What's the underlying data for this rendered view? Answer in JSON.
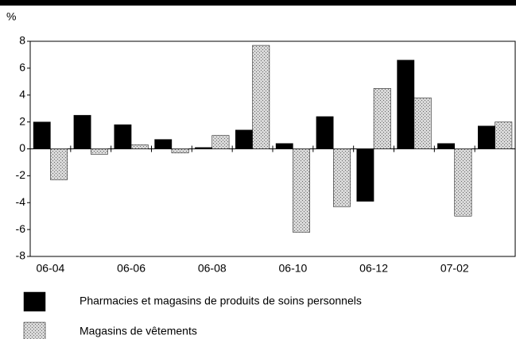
{
  "chart_data": {
    "type": "bar",
    "y_label": "%",
    "categories": [
      "06-04",
      null,
      "06-06",
      null,
      "06-08",
      null,
      "06-10",
      null,
      "06-12",
      null,
      "07-02",
      null
    ],
    "series": [
      {
        "name": "Pharmacies et magasins de produits de soins personnels",
        "color": "#000000",
        "fill": "solid",
        "values": [
          2.0,
          2.5,
          1.8,
          0.7,
          0.1,
          1.4,
          0.4,
          2.4,
          -3.9,
          6.6,
          0.4,
          1.7
        ]
      },
      {
        "name": "Magasins de vêtements",
        "color": "#d8d8d8",
        "fill": "stipple",
        "values": [
          -2.3,
          -0.4,
          0.3,
          -0.3,
          1.0,
          7.7,
          -6.2,
          -4.3,
          4.5,
          3.8,
          -5.0,
          2.0
        ]
      }
    ],
    "ylim": [
      -8,
      8
    ],
    "yticks": [
      -8,
      -6,
      -4,
      -2,
      0,
      2,
      4,
      6,
      8
    ],
    "grid": false
  }
}
